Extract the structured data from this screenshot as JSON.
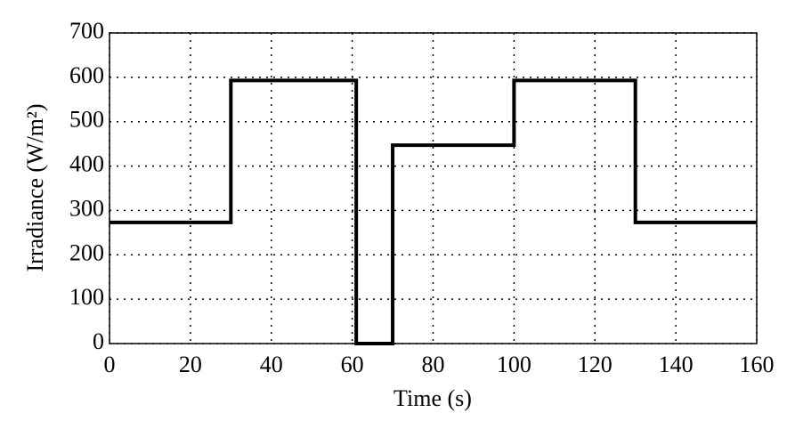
{
  "chart_data": {
    "type": "line",
    "x_label": "Time (s)",
    "y_label": "Irradiance (W/m²)",
    "x": [
      0,
      30,
      30,
      61,
      61,
      70,
      70,
      100,
      100,
      130,
      130,
      160
    ],
    "series": [
      {
        "color": "#000000",
        "values": [
          273,
          273,
          593,
          593,
          0,
          0,
          447,
          447,
          593,
          593,
          273,
          273
        ]
      }
    ],
    "xlim": [
      0,
      160
    ],
    "xticks": [
      0,
      20,
      40,
      60,
      80,
      100,
      120,
      140,
      160
    ],
    "ylim": [
      0,
      700
    ],
    "yticks": [
      0,
      100,
      200,
      300,
      400,
      500,
      600,
      700
    ],
    "grid": true
  }
}
